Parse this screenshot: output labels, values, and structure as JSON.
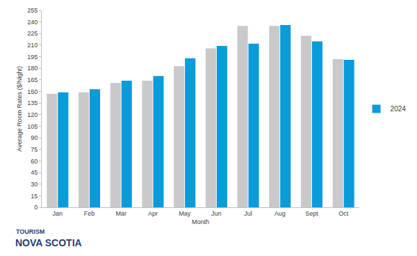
{
  "chart_data": {
    "type": "bar",
    "x_label": "Month",
    "y_label": "Average Room Rates ($/Night)",
    "categories": [
      "Jan",
      "Feb",
      "Mar",
      "Apr",
      "May",
      "Jun",
      "Jul",
      "Aug",
      "Sept",
      "Oct"
    ],
    "series": [
      {
        "color": "#c9c9cc",
        "values": [
          147,
          149,
          161,
          164,
          183,
          206,
          235,
          235,
          222,
          192
        ]
      },
      {
        "name": "2024",
        "color": "#0a9bd9",
        "values": [
          149,
          153,
          164,
          170,
          193,
          209,
          212,
          236,
          215,
          191
        ]
      }
    ],
    "ylim": [
      0,
      255
    ],
    "yticks": [
      0,
      15,
      30,
      45,
      60,
      75,
      90,
      105,
      120,
      135,
      150,
      165,
      180,
      195,
      210,
      225,
      240,
      255
    ],
    "grid": false,
    "legend": "right",
    "annotations": [
      "TOURISM",
      "NOVA SCOTIA"
    ]
  }
}
